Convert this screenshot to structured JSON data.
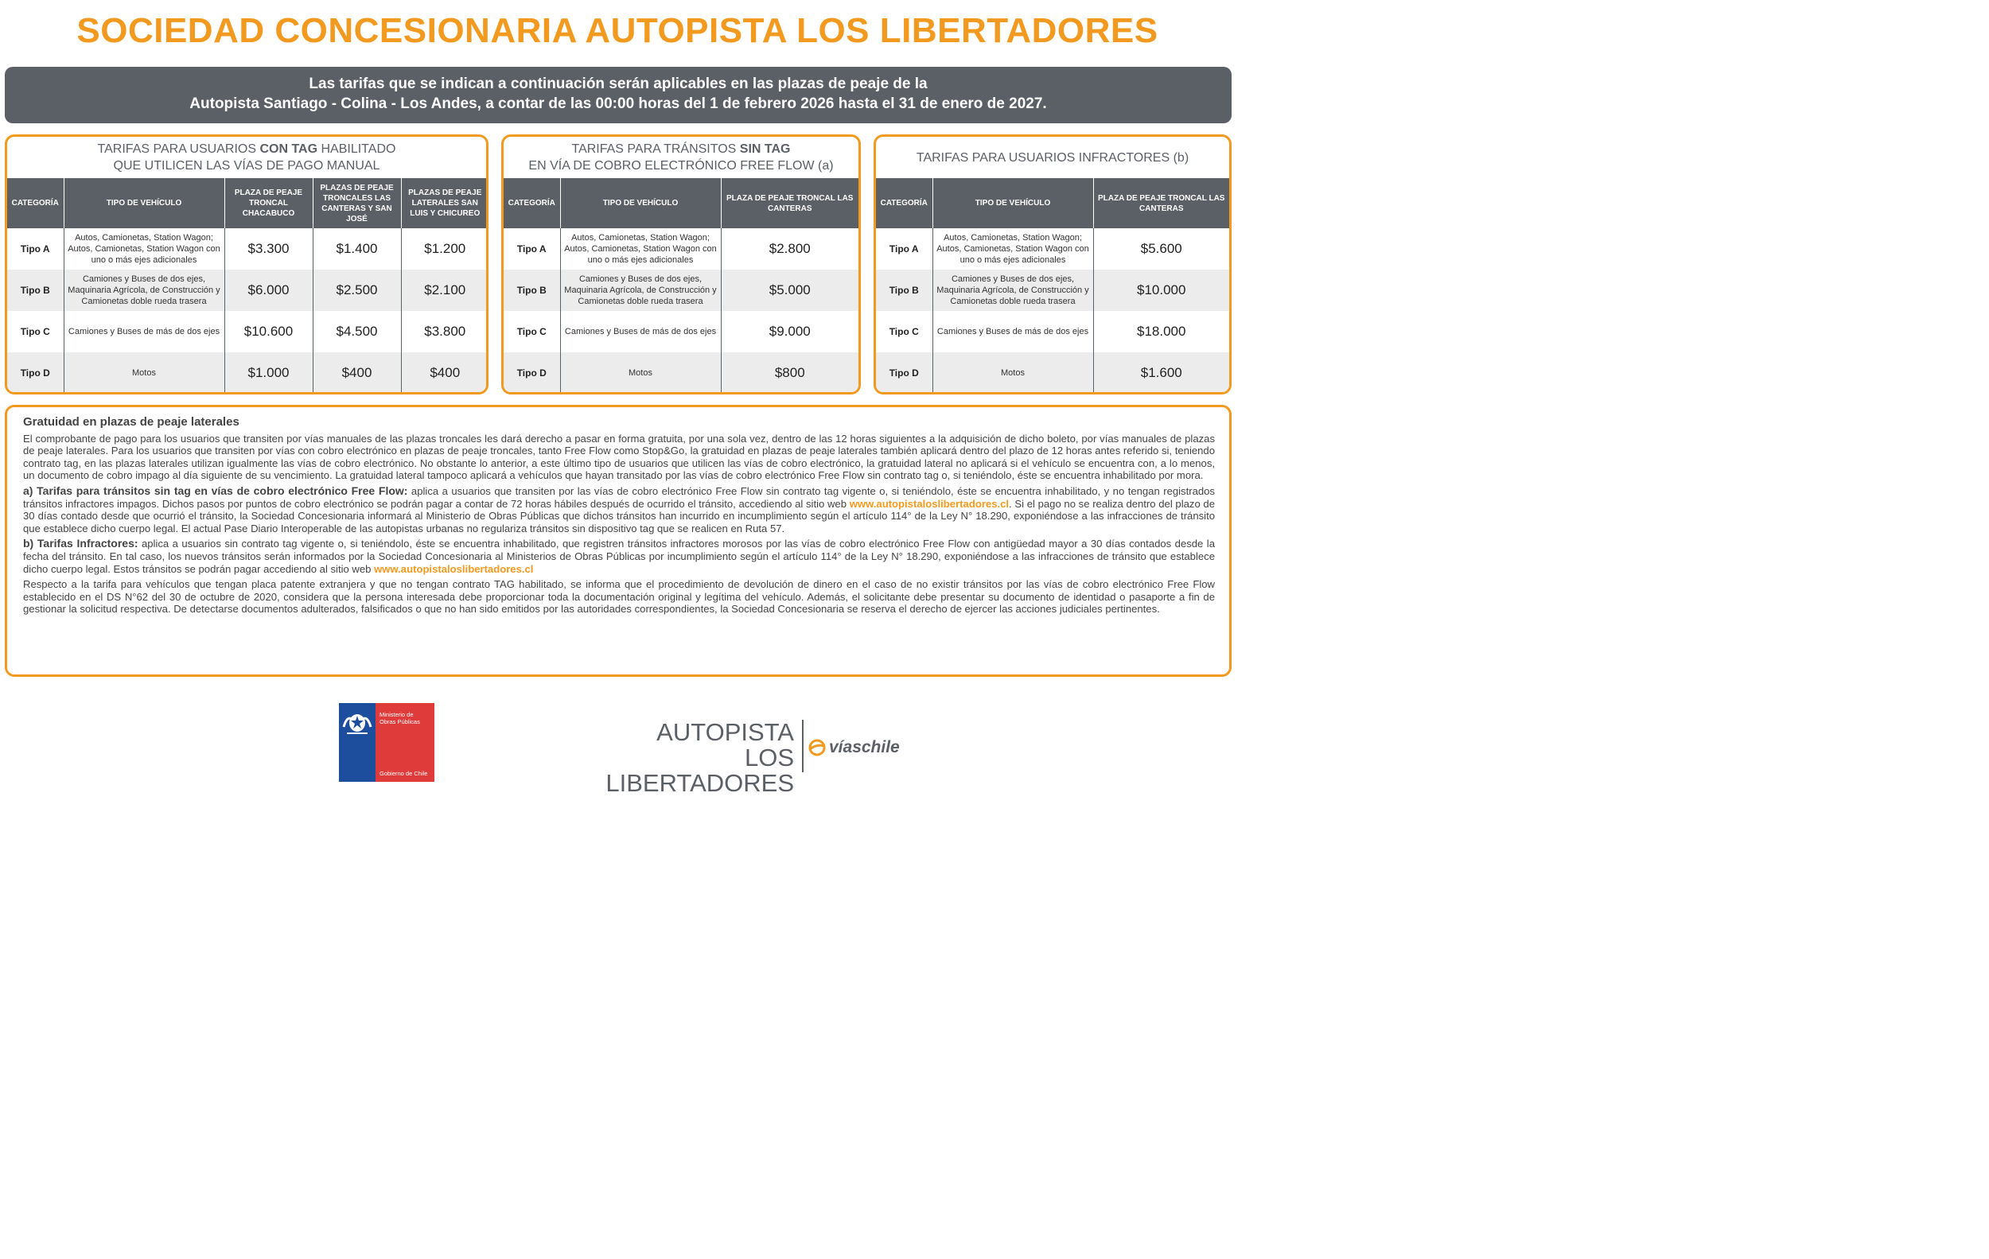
{
  "title": "SOCIEDAD CONCESIONARIA AUTOPISTA LOS LIBERTADORES",
  "banner": {
    "line1": "Las tarifas que se indican a continuación serán aplicables en las plazas de peaje de la",
    "line2": "Autopista Santiago - Colina - Los Andes, a contar de las 00:00 horas del 1 de febrero 2026 hasta el 31 de enero de 2027."
  },
  "table1": {
    "title_pre": "TARIFAS PARA USUARIOS ",
    "title_bold": "CON TAG",
    "title_post": " HABILITADO",
    "title_line2": "QUE UTILICEN LAS VÍAS DE PAGO MANUAL",
    "headers": [
      "CATEGORÍA",
      "TIPO DE VEHÍCULO",
      "PLAZA DE PEAJE TRONCAL CHACABUCO",
      "PLAZAS DE PEAJE TRONCALES LAS CANTERAS Y SAN JOSÉ",
      "PLAZAS DE PEAJE LATERALES SAN LUIS Y CHICUREO"
    ],
    "rows": [
      {
        "cat": "Tipo A",
        "veh": "Autos, Camionetas, Station Wagon; Autos, Camionetas, Station Wagon con uno o más ejes adicionales",
        "p1": "$3.300",
        "p2": "$1.400",
        "p3": "$1.200"
      },
      {
        "cat": "Tipo B",
        "veh": "Camiones y Buses de dos ejes, Maquinaria Agrícola, de Construcción y Camionetas doble rueda trasera",
        "p1": "$6.000",
        "p2": "$2.500",
        "p3": "$2.100"
      },
      {
        "cat": "Tipo C",
        "veh": "Camiones y Buses de más de dos ejes",
        "p1": "$10.600",
        "p2": "$4.500",
        "p3": "$3.800"
      },
      {
        "cat": "Tipo D",
        "veh": "Motos",
        "p1": "$1.000",
        "p2": "$400",
        "p3": "$400"
      }
    ]
  },
  "table2": {
    "title_pre": "TARIFAS PARA TRÁNSITOS ",
    "title_bold": "SIN TAG",
    "title_line2": "EN VÍA DE COBRO ELECTRÓNICO FREE FLOW (a)",
    "headers": [
      "CATEGORÍA",
      "TIPO DE VEHÍCULO",
      "PLAZA DE PEAJE TRONCAL LAS CANTERAS"
    ],
    "rows": [
      {
        "cat": "Tipo A",
        "veh": "Autos, Camionetas, Station Wagon; Autos, Camionetas, Station Wagon con uno o más ejes adicionales",
        "p1": "$2.800"
      },
      {
        "cat": "Tipo B",
        "veh": "Camiones y Buses de dos ejes, Maquinaria Agrícola, de Construcción y Camionetas doble rueda trasera",
        "p1": "$5.000"
      },
      {
        "cat": "Tipo C",
        "veh": "Camiones y Buses de más de dos ejes",
        "p1": "$9.000"
      },
      {
        "cat": "Tipo D",
        "veh": "Motos",
        "p1": "$800"
      }
    ]
  },
  "table3": {
    "title": "TARIFAS PARA USUARIOS INFRACTORES (b)",
    "headers": [
      "CATEGORÍA",
      "TIPO DE VEHÍCULO",
      "PLAZA DE PEAJE TRONCAL LAS CANTERAS"
    ],
    "rows": [
      {
        "cat": "Tipo A",
        "veh": "Autos, Camionetas, Station Wagon; Autos, Camionetas, Station Wagon con uno o más ejes adicionales",
        "p1": "$5.600"
      },
      {
        "cat": "Tipo B",
        "veh": "Camiones y Buses de dos ejes, Maquinaria Agrícola, de Construcción y Camionetas doble rueda trasera",
        "p1": "$10.000"
      },
      {
        "cat": "Tipo C",
        "veh": "Camiones y Buses de más de dos ejes",
        "p1": "$18.000"
      },
      {
        "cat": "Tipo D",
        "veh": "Motos",
        "p1": "$1.600"
      }
    ]
  },
  "info": {
    "heading": "Gratuidad en plazas de peaje laterales",
    "p1": "El comprobante de pago para los usuarios que transiten por vías manuales de las plazas troncales les dará derecho a pasar en forma gratuita, por una sola vez, dentro de las 12 horas siguientes a la adquisición de dicho boleto, por vías manuales de plazas de peaje laterales. Para los usuarios que transiten por vías con cobro electrónico en plazas de peaje troncales, tanto Free Flow como Stop&Go, la gratuidad en plazas de peaje laterales también aplicará dentro del plazo de 12 horas antes referido si, teniendo contrato tag, en las plazas laterales utilizan igualmente las vías de cobro electrónico. No obstante lo anterior, a este último tipo de usuarios que utilicen las vías de cobro electrónico, la gratuidad lateral no aplicará si el vehículo se encuentra con, a lo menos, un documento de cobro impago al día siguiente de su vencimiento. La gratuidad lateral tampoco aplicará a vehículos que hayan transitado por las vías de cobro electrónico Free Flow sin contrato tag o, si teniéndolo, éste se encuentra inhabilitado por mora.",
    "a_label": "a)  Tarifas para tránsitos sin tag en vías de cobro electrónico Free Flow:",
    "a_text1": " aplica a usuarios que transiten por las vías de cobro electrónico Free Flow sin contrato tag vigente o, si teniéndolo, éste se encuentra inhabilitado, y no tengan registrados tránsitos infractores impagos. Dichos pasos por puntos de cobro electrónico se podrán pagar a contar de 72 horas hábiles después de ocurrido el tránsito, accediendo al sitio web ",
    "a_url": "www.autopistaloslibertadores.cl",
    "a_text2": ". Si el pago no se realiza dentro del plazo de 30 días contado desde que ocurrió el tránsito, la Sociedad Concesionaria informará al Ministerio de Obras Públicas que dichos tránsitos han incurrido en incumplimiento según el artículo 114° de la Ley N° 18.290, exponiéndose a las infracciones de tránsito que establece dicho cuerpo legal. El actual Pase Diario Interoperable de las autopistas urbanas no regulariza tránsitos sin dispositivo tag que se realicen en Ruta 57.",
    "b_label": "b)  Tarifas Infractores:",
    "b_text1": " aplica a usuarios sin contrato tag vigente o, si teniéndolo, éste se encuentra inhabilitado, que registren tránsitos infractores morosos por las vías de cobro electrónico Free Flow con antigüedad mayor a 30 días contados desde la fecha del tránsito. En tal caso, los nuevos tránsitos serán informados por la Sociedad Concesionaria al Ministerios de Obras Públicas por incumplimiento según el artículo 114° de la Ley N° 18.290, exponiéndose a las infracciones de tránsito que establece dicho cuerpo legal. Estos tránsitos se podrán pagar accediendo al sitio web ",
    "b_url": "www.autopistaloslibertadores.cl",
    "p_last": "Respecto a la tarifa para vehículos que tengan placa patente extranjera y que no tengan contrato TAG habilitado, se informa que el procedimiento de devolución de dinero en el caso de no existir tránsitos por las vías de cobro electrónico Free Flow establecido en el DS N°62 del 30 de octubre de 2020, considera que la persona interesada debe proporcionar toda la documentación original y legítima del vehículo. Además, el solicitante debe presentar su documento de identidad o pasaporte a fin de gestionar la solicitud respectiva. De detectarse documentos adulterados, falsificados o que no han sido emitidos por las autoridades correspondientes, la Sociedad Concesionaria se reserva el derecho de ejercer las acciones judiciales pertinentes."
  },
  "footer": {
    "mop_line1": "Ministerio de",
    "mop_line2": "Obras Públicas",
    "mop_gob": "Gobierno de Chile",
    "brand_line1": "AUTOPISTA",
    "brand_line2": "LOS LIBERTADORES",
    "vias": "víaschile"
  }
}
